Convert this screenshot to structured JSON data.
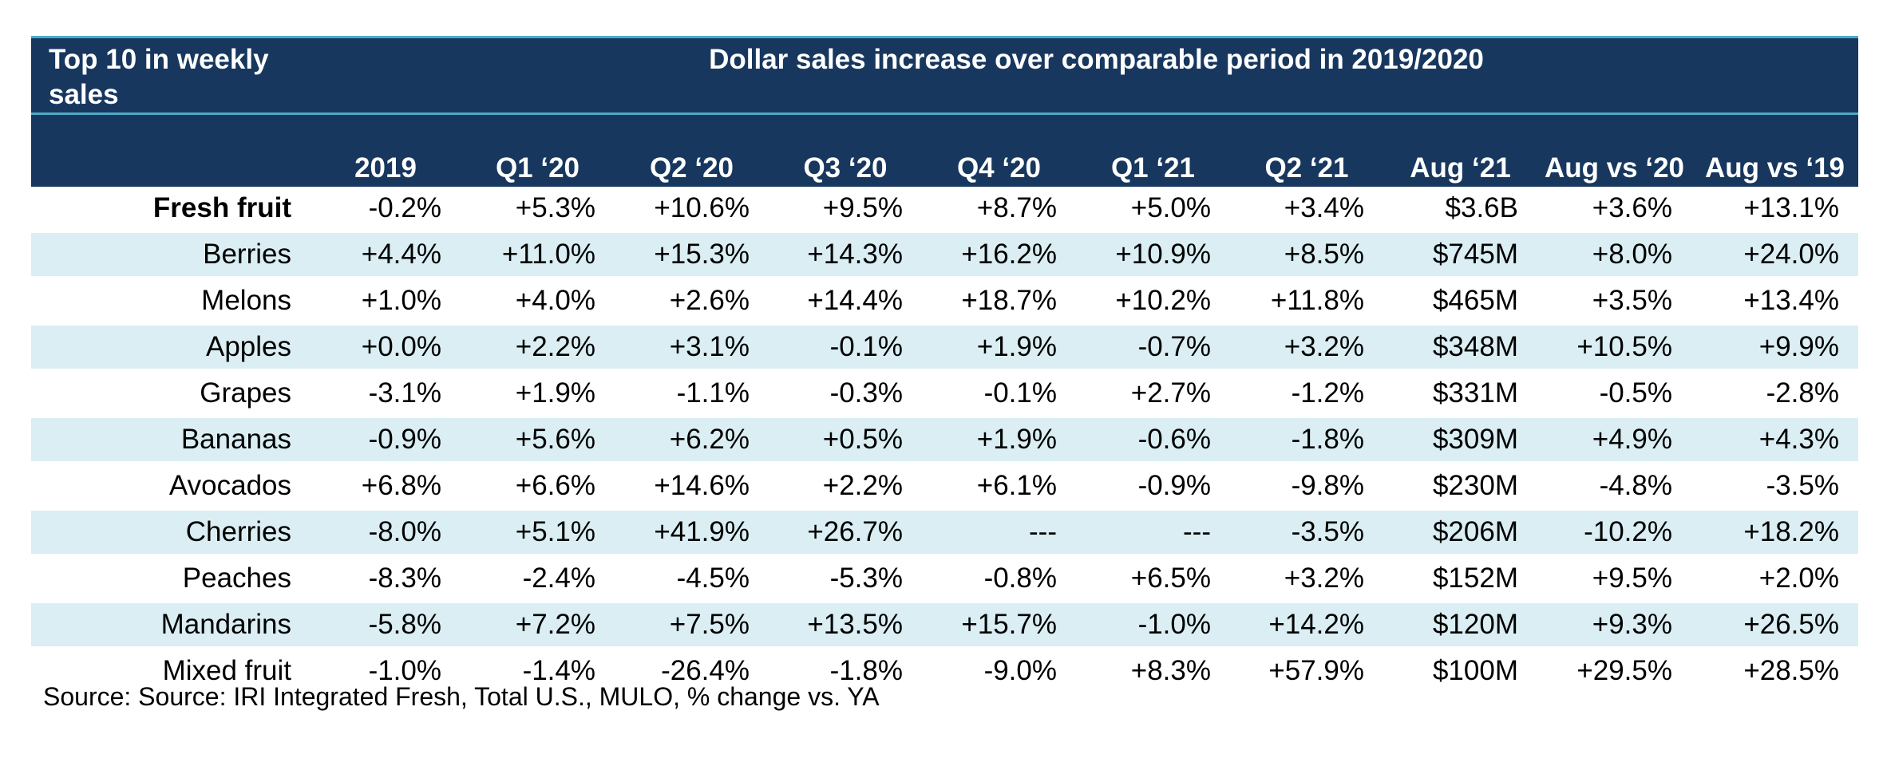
{
  "colors": {
    "header_bg": "#17375e",
    "header_text": "#ffffff",
    "rule": "#4bacc6",
    "band": "#daeef3"
  },
  "header": {
    "corner_title": "Top 10 in weekly sales",
    "banner": "Dollar sales increase over comparable period in 2019/2020"
  },
  "chart_data": {
    "type": "table",
    "title": "Dollar sales increase over comparable period in 2019/2020",
    "row_header_title": "Top 10 in weekly sales",
    "columns": [
      "2019",
      "Q1 ‘20",
      "Q2 ‘20",
      "Q3 ‘20",
      "Q4 ‘20",
      "Q1 ‘21",
      "Q2 ‘21",
      "Aug ‘21",
      "Aug vs ‘20",
      "Aug vs ‘19"
    ],
    "rows": [
      {
        "label": "Fresh fruit",
        "bold": true,
        "values": [
          "-0.2%",
          "+5.3%",
          "+10.6%",
          "+9.5%",
          "+8.7%",
          "+5.0%",
          "+3.4%",
          "$3.6B",
          "+3.6%",
          "+13.1%"
        ]
      },
      {
        "label": "Berries",
        "bold": false,
        "values": [
          "+4.4%",
          "+11.0%",
          "+15.3%",
          "+14.3%",
          "+16.2%",
          "+10.9%",
          "+8.5%",
          "$745M",
          "+8.0%",
          "+24.0%"
        ]
      },
      {
        "label": "Melons",
        "bold": false,
        "values": [
          "+1.0%",
          "+4.0%",
          "+2.6%",
          "+14.4%",
          "+18.7%",
          "+10.2%",
          "+11.8%",
          "$465M",
          "+3.5%",
          "+13.4%"
        ]
      },
      {
        "label": "Apples",
        "bold": false,
        "values": [
          "+0.0%",
          "+2.2%",
          "+3.1%",
          "-0.1%",
          "+1.9%",
          "-0.7%",
          "+3.2%",
          "$348M",
          "+10.5%",
          "+9.9%"
        ]
      },
      {
        "label": "Grapes",
        "bold": false,
        "values": [
          "-3.1%",
          "+1.9%",
          "-1.1%",
          "-0.3%",
          "-0.1%",
          "+2.7%",
          "-1.2%",
          "$331M",
          "-0.5%",
          "-2.8%"
        ]
      },
      {
        "label": "Bananas",
        "bold": false,
        "values": [
          "-0.9%",
          "+5.6%",
          "+6.2%",
          "+0.5%",
          "+1.9%",
          "-0.6%",
          "-1.8%",
          "$309M",
          "+4.9%",
          "+4.3%"
        ]
      },
      {
        "label": "Avocados",
        "bold": false,
        "values": [
          "+6.8%",
          "+6.6%",
          "+14.6%",
          "+2.2%",
          "+6.1%",
          "-0.9%",
          "-9.8%",
          "$230M",
          "-4.8%",
          "-3.5%"
        ]
      },
      {
        "label": "Cherries",
        "bold": false,
        "values": [
          "-8.0%",
          "+5.1%",
          "+41.9%",
          "+26.7%",
          "---",
          "---",
          "-3.5%",
          "$206M",
          "-10.2%",
          "+18.2%"
        ]
      },
      {
        "label": "Peaches",
        "bold": false,
        "values": [
          "-8.3%",
          "-2.4%",
          "-4.5%",
          "-5.3%",
          "-0.8%",
          "+6.5%",
          "+3.2%",
          "$152M",
          "+9.5%",
          "+2.0%"
        ]
      },
      {
        "label": "Mandarins",
        "bold": false,
        "values": [
          "-5.8%",
          "+7.2%",
          "+7.5%",
          "+13.5%",
          "+15.7%",
          "-1.0%",
          "+14.2%",
          "$120M",
          "+9.3%",
          "+26.5%"
        ]
      },
      {
        "label": "Mixed fruit",
        "bold": false,
        "values": [
          "-1.0%",
          "-1.4%",
          "-26.4%",
          "-1.8%",
          "-9.0%",
          "+8.3%",
          "+57.9%",
          "$100M",
          "+29.5%",
          "+28.5%"
        ]
      }
    ]
  },
  "footer": {
    "source": "Source: Source: IRI Integrated Fresh, Total U.S., MULO, % change vs. YA"
  }
}
